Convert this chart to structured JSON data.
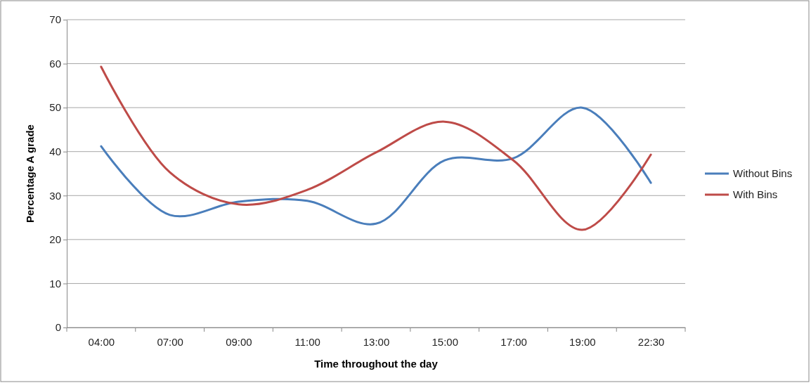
{
  "chart_data": {
    "type": "line",
    "xlabel": "Time throughout the day",
    "ylabel": "Percentage A grade",
    "categories": [
      "04:00",
      "07:00",
      "09:00",
      "11:00",
      "13:00",
      "15:00",
      "17:00",
      "19:00",
      "22:30"
    ],
    "series": [
      {
        "name": "Without Bins",
        "color": "#4a7ebb",
        "values": [
          41.2,
          25.6,
          28.6,
          28.8,
          23.6,
          38,
          38.5,
          50,
          32.9
        ]
      },
      {
        "name": "With Bins",
        "color": "#be4b48",
        "values": [
          59.3,
          35.3,
          28,
          31.3,
          39.8,
          46.8,
          38,
          22.2,
          39.3
        ]
      }
    ],
    "ylim": [
      0,
      70
    ],
    "yticks": [
      0,
      10,
      20,
      30,
      40,
      50,
      60,
      70
    ],
    "grid": "y",
    "legend": "right",
    "marker": "none",
    "line_style": "solid"
  }
}
